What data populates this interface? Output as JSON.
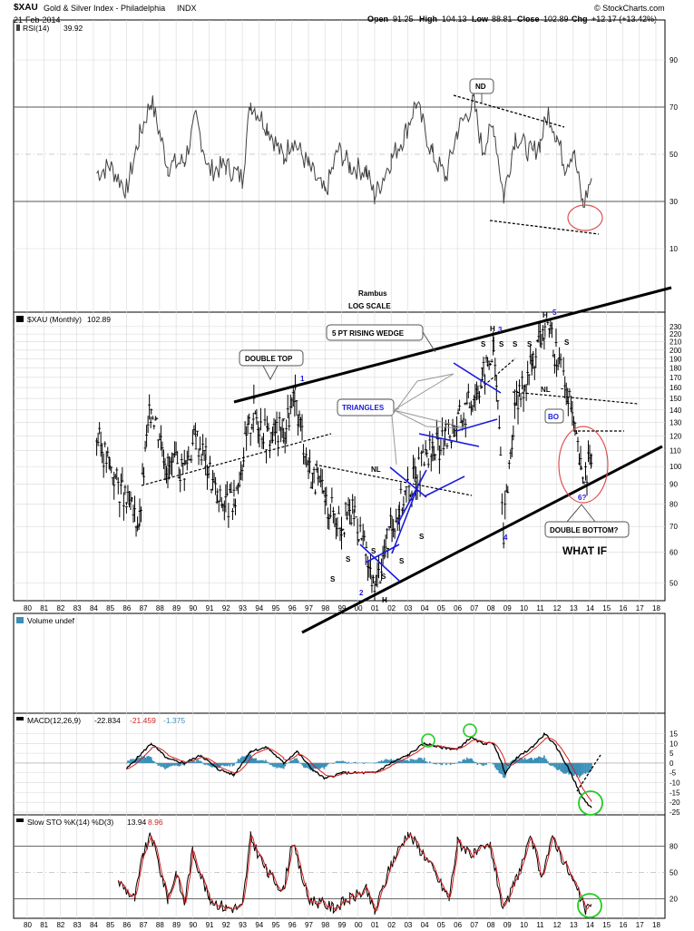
{
  "header": {
    "symbol": "$XAU",
    "name": "Gold & Silver Index - Philadelphia",
    "exchange": "INDX",
    "date": "21-Feb-2014",
    "open_label": "Open",
    "open": "91.25",
    "high_label": "High",
    "high": "104.13",
    "low_label": "Low",
    "low": "88.81",
    "close_label": "Close",
    "close": "102.89",
    "chg_label": "Chg",
    "chg": "+12.17 (+13.42%)",
    "credit": "© StockCharts.com"
  },
  "panels": {
    "rsi": {
      "label": "RSI(14)",
      "value": "39.92",
      "ticks": [
        "90",
        "70",
        "50",
        "30",
        "10"
      ]
    },
    "price": {
      "label": "$XAU (Monthly)",
      "value": "102.89",
      "ticks": [
        "230",
        "220",
        "210",
        "200",
        "190",
        "180",
        "170",
        "160",
        "150",
        "140",
        "130",
        "120",
        "110",
        "100",
        "90",
        "80",
        "70",
        "60",
        "50"
      ]
    },
    "volume": {
      "label": "Volume undef"
    },
    "macd": {
      "label": "MACD(12,26,9)",
      "v1": "-22.834",
      "v2": "-21.459",
      "v3": "-1.375",
      "ticks": [
        "15",
        "10",
        "5",
        "0",
        "-5",
        "-10",
        "-15",
        "-20",
        "-25"
      ]
    },
    "sto": {
      "label": "Slow STO %K(14) %D(3)",
      "k": "13.94",
      "d": "8.96",
      "ticks": [
        "80",
        "50",
        "20"
      ]
    }
  },
  "x_ticks": [
    "80",
    "81",
    "82",
    "83",
    "84",
    "85",
    "86",
    "87",
    "88",
    "89",
    "90",
    "91",
    "92",
    "93",
    "94",
    "95",
    "96",
    "97",
    "98",
    "99",
    "00",
    "01",
    "02",
    "03",
    "04",
    "05",
    "06",
    "07",
    "08",
    "09",
    "10",
    "11",
    "12",
    "13",
    "14",
    "15",
    "16",
    "17",
    "18"
  ],
  "annotations": {
    "author": "Rambus",
    "scale": "LOG SCALE",
    "nd": "ND",
    "wedge": "5 PT RISING WEDGE",
    "double_top": "DOUBLE TOP",
    "triangles": "TRIANGLES",
    "nl1": "NL",
    "nl2": "NL",
    "bo": "BO",
    "double_bottom": "DOUBLE BOTTOM?",
    "what_if": "WHAT IF",
    "h1": "H",
    "h2": "H",
    "h3": "H",
    "p1": "1",
    "p2": "2",
    "p3": "3",
    "p4": "4",
    "p5": "5",
    "p6": "6?",
    "s": "S"
  },
  "colors": {
    "grid": "#d8d8d8",
    "price": "#000000",
    "rsi": "#404040",
    "signal": "#d42020",
    "hist": "#3a8fb7",
    "blue": "#1a1adc",
    "circle_red": "#e05050",
    "circle_green": "#22cc22"
  },
  "chart_data": {
    "type": "line",
    "title": "$XAU Gold & Silver Index - Philadelphia",
    "xlabel": "",
    "ylabel": "",
    "x_range": [
      "1984",
      "2014"
    ],
    "price_log_scale": true,
    "price_ylim": [
      45,
      240
    ],
    "price_series": {
      "name": "$XAU (Monthly)",
      "x": [
        1984.2,
        1985.0,
        1986.0,
        1986.8,
        1987.5,
        1988.5,
        1989.5,
        1990.2,
        1990.8,
        1991.5,
        1992.5,
        1993.7,
        1994.5,
        1995.5,
        1996.2,
        1997.0,
        1998.0,
        1999.0,
        1999.8,
        2000.5,
        2001.0,
        2001.8,
        2002.5,
        2003.5,
        2004.5,
        2005.3,
        2006.5,
        2007.5,
        2008.2,
        2008.8,
        2009.5,
        2010.5,
        2011.3,
        2012.0,
        2012.7,
        2013.5,
        2014.1
      ],
      "y": [
        120,
        100,
        80,
        72,
        145,
        100,
        100,
        120,
        105,
        82,
        80,
        140,
        120,
        125,
        148,
        100,
        82,
        72,
        77,
        58,
        47,
        65,
        80,
        95,
        110,
        118,
        140,
        170,
        200,
        65,
        140,
        185,
        230,
        195,
        150,
        95,
        103
      ]
    },
    "rsi_ylim": [
      0,
      100
    ],
    "rsi_series": {
      "name": "RSI(14)",
      "x": [
        1984.2,
        1985.0,
        1986.0,
        1986.8,
        1987.5,
        1988.5,
        1989.5,
        1990.2,
        1991.0,
        1992.0,
        1993.0,
        1993.5,
        1994.5,
        1995.5,
        1996.0,
        1997.0,
        1998.0,
        1998.8,
        1999.5,
        2000.5,
        2001.0,
        2002.0,
        2002.8,
        2003.5,
        2004.5,
        2005.3,
        2006.0,
        2007.0,
        2007.5,
        2008.2,
        2008.8,
        2009.5,
        2010.5,
        2011.0,
        2011.5,
        2012.0,
        2012.5,
        2013.0,
        2013.6,
        2014.1
      ],
      "y": [
        42,
        45,
        35,
        58,
        73,
        45,
        47,
        65,
        43,
        45,
        40,
        72,
        62,
        48,
        57,
        45,
        33,
        52,
        45,
        43,
        32,
        48,
        58,
        72,
        50,
        40,
        60,
        72,
        52,
        62,
        32,
        58,
        50,
        55,
        68,
        58,
        45,
        52,
        28,
        39.92
      ]
    },
    "macd_ylim": [
      -25,
      18
    ],
    "macd_series": {
      "name": "MACD(12,26,9)",
      "x": [
        1986.0,
        1987.5,
        1988.5,
        1989.5,
        1990.5,
        1991.5,
        1992.5,
        1993.5,
        1994.5,
        1995.5,
        1996.3,
        1997.2,
        1998.0,
        1999.0,
        2000.0,
        2001.0,
        2002.0,
        2003.0,
        2004.0,
        2005.0,
        2006.0,
        2006.8,
        2007.5,
        2008.2,
        2008.9,
        2009.5,
        2010.5,
        2011.3,
        2012.0,
        2012.8,
        2013.5,
        2014.1
      ],
      "y": [
        -3,
        10,
        2,
        0,
        4,
        -3,
        -6,
        6,
        8,
        0,
        6,
        -3,
        -8,
        -5,
        -5,
        -5,
        0,
        4,
        10,
        8,
        7,
        13,
        10,
        10,
        -5,
        2,
        8,
        15,
        8,
        -4,
        -17,
        -22.834
      ]
    },
    "sto_ylim": [
      0,
      100
    ],
    "sto_series": {
      "name": "Slow STO %K(14) %D(3)",
      "x": [
        1985.5,
        1986.5,
        1987.0,
        1987.5,
        1988.5,
        1989.0,
        1989.5,
        1990.0,
        1991.0,
        1992.0,
        1993.0,
        1993.5,
        1994.5,
        1995.5,
        1996.0,
        1997.0,
        1998.5,
        1999.5,
        2000.5,
        2001.0,
        2002.0,
        2003.0,
        2004.0,
        2005.5,
        2006.0,
        2007.0,
        2008.0,
        2008.8,
        2009.5,
        2010.5,
        2011.0,
        2011.8,
        2012.5,
        2013.0,
        2013.8,
        2014.1
      ],
      "y": [
        40,
        20,
        70,
        92,
        20,
        50,
        15,
        75,
        20,
        10,
        10,
        90,
        50,
        30,
        85,
        20,
        10,
        20,
        30,
        5,
        60,
        95,
        70,
        20,
        85,
        70,
        80,
        5,
        40,
        90,
        45,
        90,
        60,
        40,
        5,
        13.94
      ]
    },
    "trendlines": [
      {
        "name": "wedge-top",
        "from": [
          1992.2,
          138
        ],
        "to": [
          2018.5,
          300
        ]
      },
      {
        "name": "wedge-bottom",
        "from": [
          1997.5,
          32
        ],
        "to": [
          2018.0,
          125
        ]
      }
    ]
  }
}
